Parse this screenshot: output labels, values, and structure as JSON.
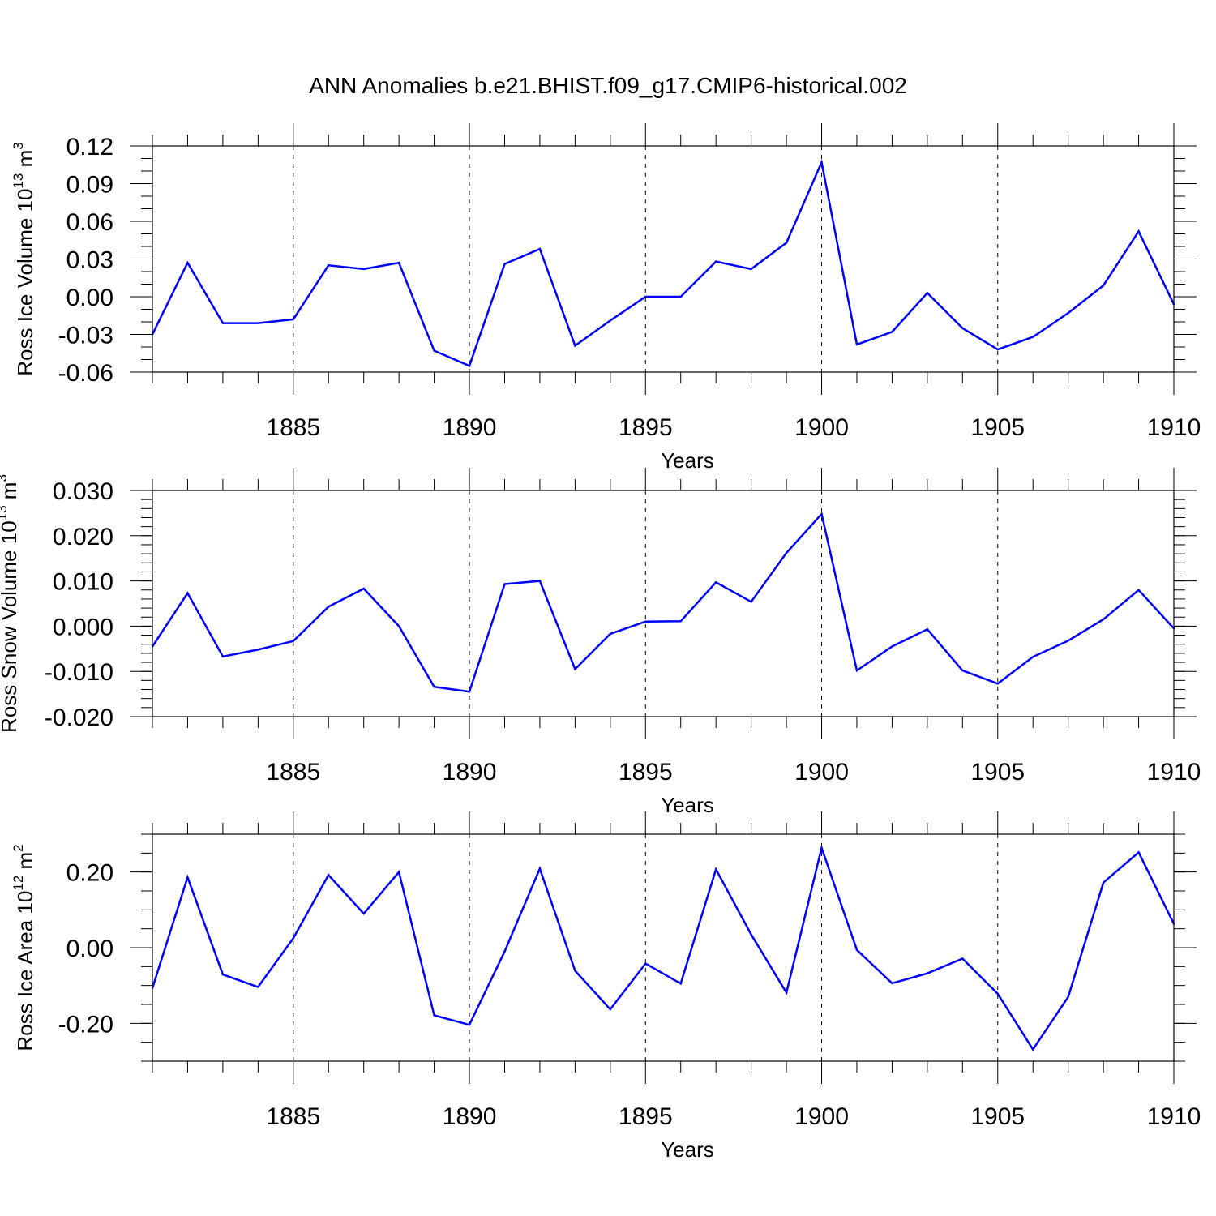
{
  "title": "ANN Anomalies b.e21.BHIST.f09_g17.CMIP6-historical.002",
  "line_color": "#0000ff",
  "chart_data": [
    {
      "type": "line",
      "ylabel": "Ross Ice Volume 10",
      "ylabel_exp": "13",
      "ylabel_unit": " m",
      "ylabel_unit_exp": "3",
      "xlabel": "Years",
      "xlim": [
        1881,
        1910
      ],
      "ylim": [
        -0.06,
        0.12
      ],
      "yticks": [
        -0.06,
        -0.03,
        0.0,
        0.03,
        0.06,
        0.09,
        0.12
      ],
      "ytick_labels": [
        "-0.06",
        "-0.03",
        "0.00",
        "0.03",
        "0.06",
        "0.09",
        "0.12"
      ],
      "yminor_step": 0.01,
      "xticks": [
        1885,
        1890,
        1895,
        1900,
        1905,
        1910
      ],
      "xtick_labels": [
        "1885",
        "1890",
        "1895",
        "1900",
        "1905",
        "1910"
      ],
      "x": [
        1881,
        1882,
        1883,
        1884,
        1885,
        1886,
        1887,
        1888,
        1889,
        1890,
        1891,
        1892,
        1893,
        1894,
        1895,
        1896,
        1897,
        1898,
        1899,
        1900,
        1901,
        1902,
        1903,
        1904,
        1905,
        1906,
        1907,
        1908,
        1909,
        1910
      ],
      "values": [
        -0.03,
        0.027,
        -0.021,
        -0.021,
        -0.018,
        0.025,
        0.022,
        0.027,
        -0.043,
        -0.055,
        0.026,
        0.038,
        -0.039,
        -0.019,
        0.0,
        0.0,
        0.028,
        0.022,
        0.043,
        0.107,
        -0.038,
        -0.028,
        0.003,
        -0.025,
        -0.042,
        -0.032,
        -0.013,
        0.009,
        0.052,
        -0.006
      ]
    },
    {
      "type": "line",
      "ylabel": "Ross Snow Volume 10",
      "ylabel_exp": "13",
      "ylabel_unit": " m",
      "ylabel_unit_exp": "3",
      "xlabel": "Years",
      "xlim": [
        1881,
        1910
      ],
      "ylim": [
        -0.02,
        0.03
      ],
      "yticks": [
        -0.02,
        -0.01,
        0.0,
        0.01,
        0.02,
        0.03
      ],
      "ytick_labels": [
        "-0.020",
        "-0.010",
        "0.000",
        "0.010",
        "0.020",
        "0.030"
      ],
      "yminor_step": 0.002,
      "xticks": [
        1885,
        1890,
        1895,
        1900,
        1905,
        1910
      ],
      "xtick_labels": [
        "1885",
        "1890",
        "1895",
        "1900",
        "1905",
        "1910"
      ],
      "x": [
        1881,
        1882,
        1883,
        1884,
        1885,
        1886,
        1887,
        1888,
        1889,
        1890,
        1891,
        1892,
        1893,
        1894,
        1895,
        1896,
        1897,
        1898,
        1899,
        1900,
        1901,
        1902,
        1903,
        1904,
        1905,
        1906,
        1907,
        1908,
        1909,
        1910
      ],
      "values": [
        -0.0045,
        0.0073,
        -0.0067,
        -0.0052,
        -0.0033,
        0.0043,
        0.0083,
        0.0,
        -0.0134,
        -0.0145,
        0.0093,
        0.01,
        -0.0095,
        -0.0017,
        0.001,
        0.0011,
        0.0097,
        0.0054,
        0.0162,
        0.0248,
        -0.0098,
        -0.0045,
        -0.0007,
        -0.0098,
        -0.0127,
        -0.0068,
        -0.0032,
        0.0015,
        0.008,
        -0.0005
      ]
    },
    {
      "type": "line",
      "ylabel": "Ross Ice Area 10",
      "ylabel_exp": "12",
      "ylabel_unit": " m",
      "ylabel_unit_exp": "2",
      "xlabel": "Years",
      "xlim": [
        1881,
        1910
      ],
      "ylim": [
        -0.3,
        0.3
      ],
      "yticks": [
        -0.2,
        0.0,
        0.2
      ],
      "ytick_labels": [
        "-0.20",
        "0.00",
        "0.20"
      ],
      "yminor_step": 0.05,
      "xticks": [
        1885,
        1890,
        1895,
        1900,
        1905,
        1910
      ],
      "xtick_labels": [
        "1885",
        "1890",
        "1895",
        "1900",
        "1905",
        "1910"
      ],
      "x": [
        1881,
        1882,
        1883,
        1884,
        1885,
        1886,
        1887,
        1888,
        1889,
        1890,
        1891,
        1892,
        1893,
        1894,
        1895,
        1896,
        1897,
        1898,
        1899,
        1900,
        1901,
        1902,
        1903,
        1904,
        1905,
        1906,
        1907,
        1908,
        1909,
        1910
      ],
      "values": [
        -0.107,
        0.186,
        -0.071,
        -0.104,
        0.025,
        0.192,
        0.09,
        0.2,
        -0.179,
        -0.204,
        -0.01,
        0.209,
        -0.061,
        -0.163,
        -0.042,
        -0.095,
        0.207,
        0.035,
        -0.119,
        0.264,
        -0.006,
        -0.094,
        -0.068,
        -0.029,
        -0.122,
        -0.269,
        -0.13,
        0.172,
        0.252,
        0.063
      ]
    }
  ]
}
